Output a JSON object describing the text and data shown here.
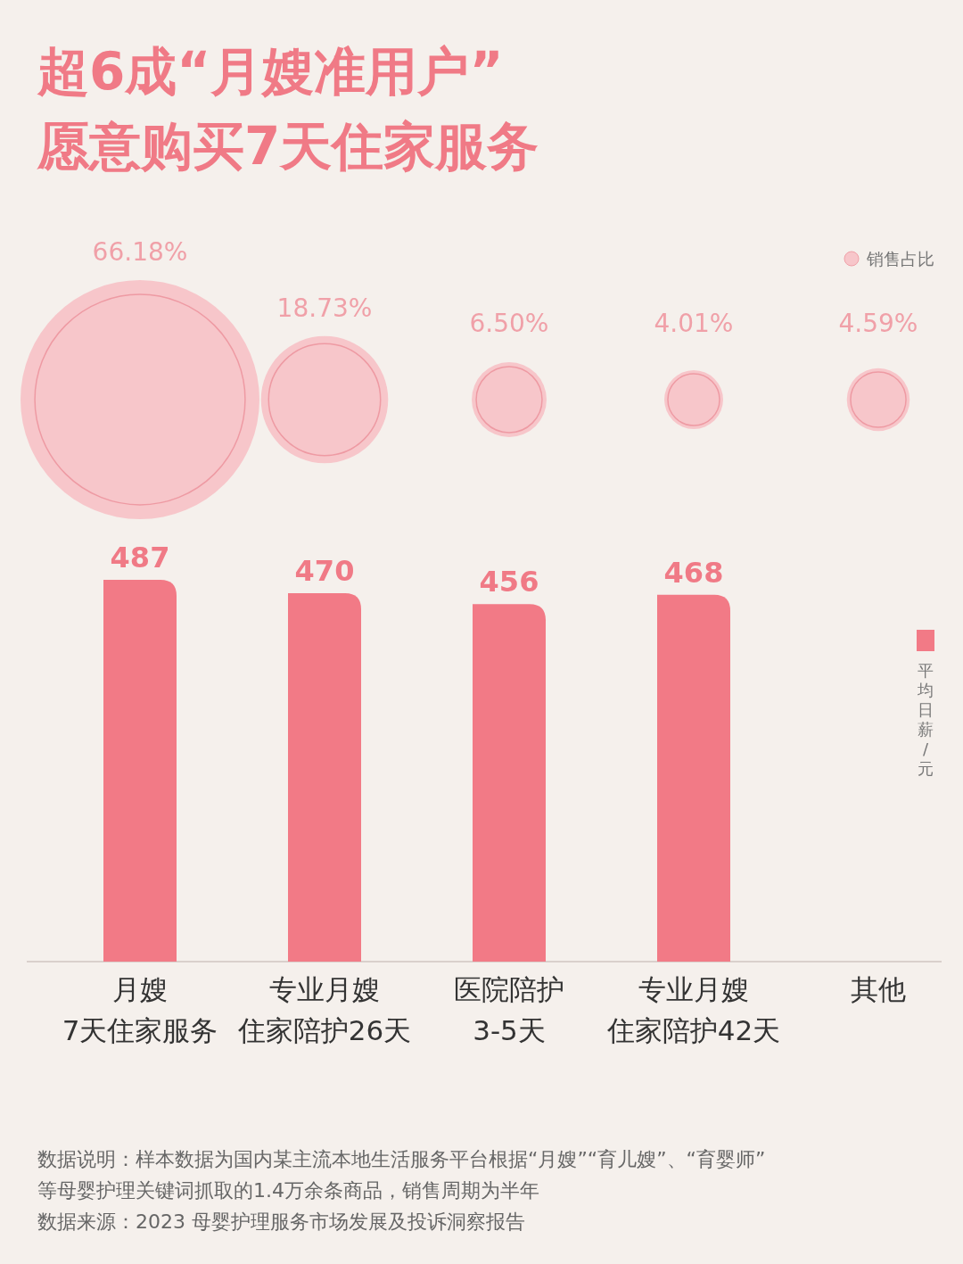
{
  "chart_data": [
    {
      "type": "other",
      "title": "超6成“月嫂准用户”\n愿意购买7天住家服务",
      "categories": [
        null,
        null,
        null,
        null,
        null
      ],
      "legend": "top right",
      "series": [
        {
          "name": "销售占比",
          "color": "#f7c6ca",
          "values": [
            66.18,
            18.73,
            6.5,
            4.01,
            4.59
          ],
          "value_labels": [
            "66.18%",
            "18.73%",
            "6.50%",
            "4.01%",
            "4.59%"
          ]
        }
      ]
    },
    {
      "type": "bar",
      "categories": [
        "月嫂7天住家服务",
        "专业月嫂住家陪护26天",
        "医院陪护3-5天",
        "专业月嫂住家陪护42天",
        "其他"
      ],
      "data_labels": true,
      "legend": "right",
      "series": [
        {
          "name": "平均日薪/元",
          "color": "#f27a86",
          "values": [
            487,
            470,
            456,
            468,
            null
          ]
        }
      ],
      "annotations": [
        "数据说明：样本数据为国内某主流本地生活服务平台根据“月嫂”“育儿嫂”、“育婴师”\n等母婴护理关键词抓取的1.4万余条商品，销售周期为半年",
        "数据来源：2023 母婴护理服务市场发展及投诉洞察报告"
      ]
    }
  ]
}
